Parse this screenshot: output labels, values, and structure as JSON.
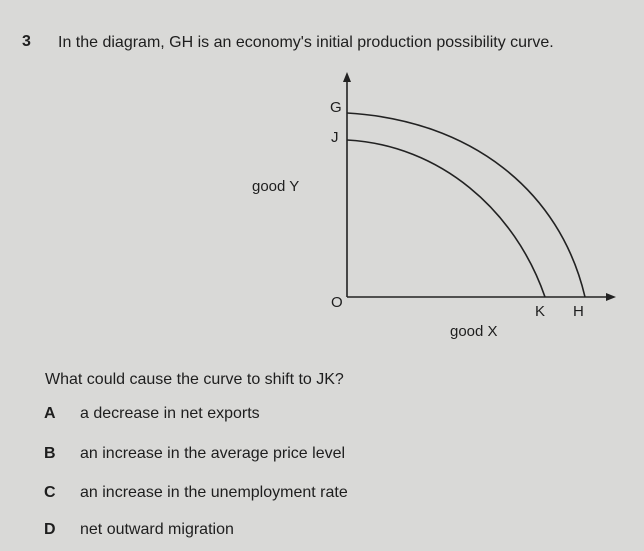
{
  "question": {
    "number": "3",
    "text": "In the diagram, GH is an economy's initial production possibility curve.",
    "prompt": "What could cause the curve to shift to JK?"
  },
  "diagram": {
    "y_axis_label": "good Y",
    "x_axis_label": "good X",
    "origin": "O",
    "points": [
      "G",
      "J",
      "K",
      "H"
    ]
  },
  "options": [
    {
      "letter": "A",
      "text": "a decrease in net exports"
    },
    {
      "letter": "B",
      "text": "an increase in the average price level"
    },
    {
      "letter": "C",
      "text": "an increase in the unemployment rate"
    },
    {
      "letter": "D",
      "text": "net outward migration"
    }
  ]
}
